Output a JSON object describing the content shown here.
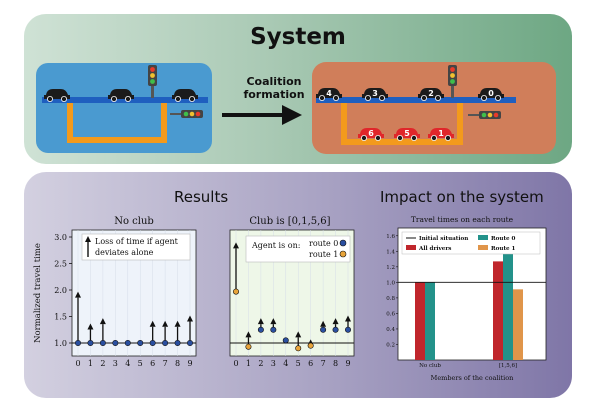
{
  "system": {
    "title": "System",
    "arrow_label_line1": "Coalition",
    "arrow_label_line2": "formation",
    "car_labels": [
      "4",
      "3",
      "2",
      "0",
      "6",
      "5",
      "1"
    ]
  },
  "results": {
    "title": "Results",
    "impact_title": "Impact on the system"
  },
  "colors": {
    "road_blue": "#1f5fbf",
    "road_orange": "#f39a1c",
    "car_black": "#1b1b1b",
    "car_red": "#e0262a",
    "route0": "#2a4fa0",
    "route1": "#e8a43a",
    "bar_all_drivers": "#c0262c",
    "bar_route0": "#23928a",
    "bar_route1": "#e0954a"
  },
  "chart_data": [
    {
      "type": "scatter",
      "title": "No club",
      "ylabel": "Normalized travel time",
      "x": [
        0,
        1,
        2,
        3,
        4,
        5,
        6,
        7,
        8,
        9
      ],
      "xticks": [
        "0",
        "1",
        "2",
        "3",
        "4",
        "5",
        "6",
        "7",
        "8",
        "9"
      ],
      "yticks": [
        "1.0",
        "1.5",
        "2.0",
        "2.5",
        "3.0"
      ],
      "ylim": [
        1.0,
        3.0
      ],
      "series": [
        {
          "name": "route 0",
          "values": [
            1,
            1,
            1,
            1,
            1,
            1,
            1,
            1,
            1,
            1
          ]
        }
      ],
      "deviation_arrow_tops": [
        1.95,
        1.35,
        1.45,
        1.0,
        1.0,
        1.0,
        1.4,
        1.4,
        1.4,
        1.5
      ],
      "legend": [
        "Loss of time if agent",
        "deviates alone"
      ],
      "baseline": 1.0
    },
    {
      "type": "scatter",
      "title": "Club is [0,1,5,6]",
      "x": [
        0,
        1,
        2,
        3,
        4,
        5,
        6,
        7,
        8,
        9
      ],
      "xticks": [
        "0",
        "1",
        "2",
        "3",
        "4",
        "5",
        "6",
        "7",
        "8",
        "9"
      ],
      "ylim": [
        1.0,
        3.0
      ],
      "series": [
        {
          "name": "route 0",
          "x": [
            2,
            3,
            4,
            7,
            8,
            9
          ],
          "values": [
            1.25,
            1.25,
            1.05,
            1.25,
            1.25,
            1.25
          ]
        },
        {
          "name": "route 1",
          "x": [
            0,
            1,
            5,
            6
          ],
          "values": [
            1.97,
            0.93,
            0.9,
            0.95
          ]
        }
      ],
      "deviation_arrow_tops": [
        2.88,
        1.2,
        1.45,
        1.45,
        1.05,
        1.2,
        1.05,
        1.4,
        1.45,
        1.5
      ],
      "legend_title": "Agent is on:",
      "baseline": 1.0
    },
    {
      "type": "bar",
      "title": "Travel times on each route",
      "xlabel": "Members of the coalition",
      "categories": [
        "No club",
        "[1,5,6]"
      ],
      "yticks": [
        "0.0",
        "0.2",
        "0.4",
        "0.6",
        "0.8",
        "1.0",
        "1.2",
        "1.4",
        "1.6"
      ],
      "ylim": [
        0,
        1.7
      ],
      "series": [
        {
          "name": "All drivers",
          "values": [
            1.0,
            1.27
          ]
        },
        {
          "name": "Route 0",
          "values": [
            1.0,
            1.4
          ]
        },
        {
          "name": "Route 1",
          "values": [
            0,
            0.91
          ]
        }
      ],
      "initial_situation": 1.0,
      "legend": [
        "Initial situation",
        "All drivers",
        "Route 0",
        "Route 1"
      ]
    }
  ]
}
